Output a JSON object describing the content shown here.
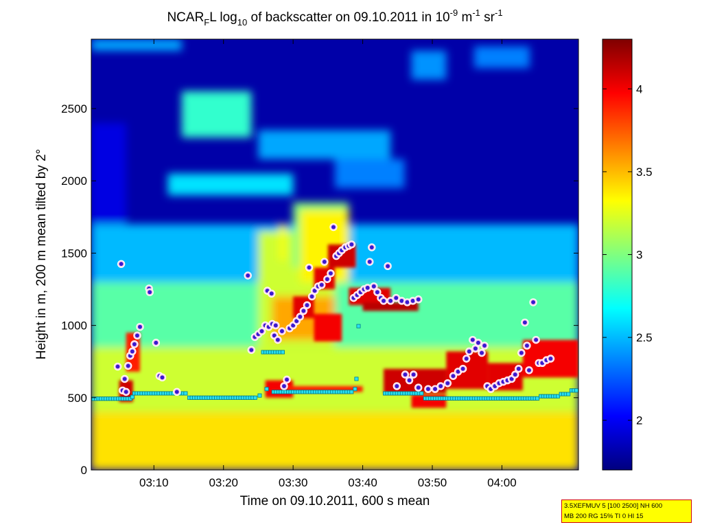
{
  "chart_data": {
    "type": "heatmap",
    "title": {
      "p1": "NCAR",
      "p1_sub": "F",
      "p2": "L log",
      "p2_sub": "10",
      "p3": " of backscatter on 09.10.2011 in 10",
      "p3_sup": "-9",
      "p4": " m",
      "p4_sup": "-1",
      "p5": " sr",
      "p5_sup": "-1"
    },
    "xlabel": "Time on 09.10.2011, 600 s mean",
    "ylabel": "Height in m, 200 m mean tilted by 2°",
    "x_unit": "minutes after 03:00",
    "xlim": [
      1,
      71
    ],
    "ylim": [
      0,
      2980
    ],
    "x_ticks": [
      {
        "v": 10,
        "label": "03:10"
      },
      {
        "v": 20,
        "label": "03:20"
      },
      {
        "v": 30,
        "label": "03:30"
      },
      {
        "v": 40,
        "label": "03:40"
      },
      {
        "v": 50,
        "label": "03:50"
      },
      {
        "v": 60,
        "label": "04:00"
      }
    ],
    "y_ticks": [
      {
        "v": 0,
        "label": "0"
      },
      {
        "v": 500,
        "label": "500"
      },
      {
        "v": 1000,
        "label": "1000"
      },
      {
        "v": 1500,
        "label": "1500"
      },
      {
        "v": 2000,
        "label": "2000"
      },
      {
        "v": 2500,
        "label": "2500"
      }
    ],
    "colorbar": {
      "range": [
        1.7,
        4.3
      ],
      "ticks": [
        {
          "v": 2,
          "label": "2"
        },
        {
          "v": 2.5,
          "label": "2.5"
        },
        {
          "v": 3,
          "label": "3"
        },
        {
          "v": 3.5,
          "label": "3.5"
        },
        {
          "v": 4,
          "label": "4"
        }
      ]
    },
    "cloud_regions": [
      {
        "x": [
          1,
          71
        ],
        "y": [
          0,
          400
        ],
        "value": 3.4
      },
      {
        "x": [
          1,
          71
        ],
        "y": [
          400,
          850
        ],
        "value": 3.2
      },
      {
        "x": [
          1,
          71
        ],
        "y": [
          850,
          1300
        ],
        "value": 2.9
      },
      {
        "x": [
          1,
          71
        ],
        "y": [
          1300,
          1700
        ],
        "value": 2.5
      },
      {
        "x": [
          1,
          6
        ],
        "y": [
          1700,
          2400
        ],
        "value": 1.95
      },
      {
        "x": [
          25,
          36
        ],
        "y": [
          850,
          1650
        ],
        "value": 3.2
      },
      {
        "x": [
          30,
          38
        ],
        "y": [
          1400,
          1850
        ],
        "value": 3.0
      },
      {
        "x": [
          14,
          24
        ],
        "y": [
          2400,
          2520
        ],
        "value": 3.2
      },
      {
        "x": [
          14,
          24
        ],
        "y": [
          2300,
          2620
        ],
        "value": 2.8
      },
      {
        "x": [
          12,
          30
        ],
        "y": [
          1900,
          2050
        ],
        "value": 2.6
      },
      {
        "x": [
          25,
          44
        ],
        "y": [
          2150,
          2350
        ],
        "value": 2.45
      },
      {
        "x": [
          36,
          46
        ],
        "y": [
          1950,
          2150
        ],
        "value": 2.35
      },
      {
        "x": [
          47,
          52
        ],
        "y": [
          2700,
          2900
        ],
        "value": 2.4
      },
      {
        "x": [
          56,
          64
        ],
        "y": [
          2780,
          2930
        ],
        "value": 2.35
      },
      {
        "x": [
          1,
          14
        ],
        "y": [
          2900,
          2980
        ],
        "value": 2.45
      },
      {
        "x": [
          27,
          36
        ],
        "y": [
          900,
          1200
        ],
        "value": 3.55
      },
      {
        "x": [
          28,
          29
        ],
        "y": [
          1450,
          1700
        ],
        "value": 3.3
      },
      {
        "x": [
          31,
          38
        ],
        "y": [
          1300,
          1800
        ],
        "value": 3.35
      }
    ],
    "layers": [
      {
        "x": [
          5,
          7
        ],
        "y": [
          470,
          620
        ],
        "value": 4.1
      },
      {
        "x": [
          6,
          8
        ],
        "y": [
          680,
          950
        ],
        "value": 3.9
      },
      {
        "x": [
          26,
          30
        ],
        "y": [
          500,
          620
        ],
        "value": 4.0
      },
      {
        "x": [
          29,
          40
        ],
        "y": [
          540,
          580
        ],
        "value": 3.9
      },
      {
        "x": [
          30,
          33
        ],
        "y": [
          1050,
          1200
        ],
        "value": 4.05
      },
      {
        "x": [
          33,
          36
        ],
        "y": [
          1250,
          1400
        ],
        "value": 4.05
      },
      {
        "x": [
          35,
          39
        ],
        "y": [
          1400,
          1560
        ],
        "value": 4.1
      },
      {
        "x": [
          38,
          44
        ],
        "y": [
          1140,
          1260
        ],
        "value": 4.05
      },
      {
        "x": [
          40,
          48
        ],
        "y": [
          1100,
          1160
        ],
        "value": 4.15
      },
      {
        "x": [
          33,
          36
        ],
        "y": [
          890,
          1080
        ],
        "value": 4.0
      },
      {
        "x": [
          36,
          37
        ],
        "y": [
          890,
          1080
        ],
        "value": 4.0
      },
      {
        "x": [
          43,
          52
        ],
        "y": [
          530,
          700
        ],
        "value": 4.1
      },
      {
        "x": [
          47,
          52
        ],
        "y": [
          430,
          520
        ],
        "value": 4.0
      },
      {
        "x": [
          52,
          58
        ],
        "y": [
          560,
          820
        ],
        "value": 4.05
      },
      {
        "x": [
          58,
          63
        ],
        "y": [
          550,
          740
        ],
        "value": 4.05
      },
      {
        "x": [
          63,
          71
        ],
        "y": [
          640,
          900
        ],
        "value": 4.0
      }
    ],
    "series": [
      {
        "marker": "circle",
        "points": [
          {
            "x": 4.8,
            "y": 715
          },
          {
            "x": 5.3,
            "y": 1425
          },
          {
            "x": 5.5,
            "y": 550
          },
          {
            "x": 5.8,
            "y": 630
          },
          {
            "x": 6.0,
            "y": 540
          },
          {
            "x": 6.3,
            "y": 720
          },
          {
            "x": 6.6,
            "y": 790
          },
          {
            "x": 6.9,
            "y": 820
          },
          {
            "x": 7.2,
            "y": 870
          },
          {
            "x": 7.6,
            "y": 930
          },
          {
            "x": 8.0,
            "y": 990
          },
          {
            "x": 9.3,
            "y": 1255
          },
          {
            "x": 9.4,
            "y": 1230
          },
          {
            "x": 10.3,
            "y": 880
          },
          {
            "x": 10.8,
            "y": 650
          },
          {
            "x": 11.2,
            "y": 640
          },
          {
            "x": 13.3,
            "y": 540
          },
          {
            "x": 23.5,
            "y": 1345
          },
          {
            "x": 24.0,
            "y": 830
          },
          {
            "x": 24.5,
            "y": 920
          },
          {
            "x": 25.0,
            "y": 940
          },
          {
            "x": 25.5,
            "y": 960
          },
          {
            "x": 26.0,
            "y": 1000
          },
          {
            "x": 26.5,
            "y": 990
          },
          {
            "x": 27.0,
            "y": 1010
          },
          {
            "x": 27.5,
            "y": 1000
          },
          {
            "x": 26.3,
            "y": 1240
          },
          {
            "x": 26.9,
            "y": 1220
          },
          {
            "x": 27.3,
            "y": 930
          },
          {
            "x": 27.8,
            "y": 900
          },
          {
            "x": 28.4,
            "y": 960
          },
          {
            "x": 28.7,
            "y": 580
          },
          {
            "x": 29.1,
            "y": 625
          },
          {
            "x": 29.5,
            "y": 980
          },
          {
            "x": 30.0,
            "y": 1000
          },
          {
            "x": 30.5,
            "y": 1030
          },
          {
            "x": 31.0,
            "y": 1060
          },
          {
            "x": 31.5,
            "y": 1100
          },
          {
            "x": 32.0,
            "y": 1140
          },
          {
            "x": 32.3,
            "y": 1400
          },
          {
            "x": 32.7,
            "y": 1200
          },
          {
            "x": 33.1,
            "y": 1240
          },
          {
            "x": 33.6,
            "y": 1270
          },
          {
            "x": 34.1,
            "y": 1280
          },
          {
            "x": 34.5,
            "y": 1440
          },
          {
            "x": 34.9,
            "y": 1320
          },
          {
            "x": 35.4,
            "y": 1360
          },
          {
            "x": 35.8,
            "y": 1680
          },
          {
            "x": 36.2,
            "y": 1480
          },
          {
            "x": 36.6,
            "y": 1500
          },
          {
            "x": 37.0,
            "y": 1520
          },
          {
            "x": 37.5,
            "y": 1540
          },
          {
            "x": 38.0,
            "y": 1550
          },
          {
            "x": 38.4,
            "y": 1560
          },
          {
            "x": 38.7,
            "y": 1190
          },
          {
            "x": 39.2,
            "y": 1210
          },
          {
            "x": 39.7,
            "y": 1230
          },
          {
            "x": 40.2,
            "y": 1250
          },
          {
            "x": 40.7,
            "y": 1260
          },
          {
            "x": 41.0,
            "y": 1440
          },
          {
            "x": 41.3,
            "y": 1540
          },
          {
            "x": 41.6,
            "y": 1270
          },
          {
            "x": 42.1,
            "y": 1230
          },
          {
            "x": 42.6,
            "y": 1190
          },
          {
            "x": 43.0,
            "y": 1170
          },
          {
            "x": 43.6,
            "y": 1410
          },
          {
            "x": 44.0,
            "y": 1170
          },
          {
            "x": 44.8,
            "y": 1190
          },
          {
            "x": 45.6,
            "y": 1170
          },
          {
            "x": 46.4,
            "y": 1160
          },
          {
            "x": 47.2,
            "y": 1170
          },
          {
            "x": 48.0,
            "y": 1180
          },
          {
            "x": 44.9,
            "y": 580
          },
          {
            "x": 46.1,
            "y": 660
          },
          {
            "x": 46.7,
            "y": 620
          },
          {
            "x": 47.3,
            "y": 660
          },
          {
            "x": 48.0,
            "y": 570
          },
          {
            "x": 49.4,
            "y": 560
          },
          {
            "x": 50.4,
            "y": 560
          },
          {
            "x": 51.2,
            "y": 580
          },
          {
            "x": 52.2,
            "y": 600
          },
          {
            "x": 53.0,
            "y": 650
          },
          {
            "x": 53.7,
            "y": 680
          },
          {
            "x": 54.4,
            "y": 700
          },
          {
            "x": 54.9,
            "y": 770
          },
          {
            "x": 55.3,
            "y": 820
          },
          {
            "x": 55.8,
            "y": 900
          },
          {
            "x": 56.2,
            "y": 840
          },
          {
            "x": 56.6,
            "y": 880
          },
          {
            "x": 57.1,
            "y": 810
          },
          {
            "x": 57.5,
            "y": 860
          },
          {
            "x": 57.9,
            "y": 580
          },
          {
            "x": 58.4,
            "y": 560
          },
          {
            "x": 59.0,
            "y": 580
          },
          {
            "x": 59.6,
            "y": 600
          },
          {
            "x": 60.2,
            "y": 610
          },
          {
            "x": 60.8,
            "y": 620
          },
          {
            "x": 61.4,
            "y": 630
          },
          {
            "x": 61.9,
            "y": 660
          },
          {
            "x": 62.4,
            "y": 700
          },
          {
            "x": 62.8,
            "y": 810
          },
          {
            "x": 63.3,
            "y": 1020
          },
          {
            "x": 63.6,
            "y": 860
          },
          {
            "x": 63.9,
            "y": 690
          },
          {
            "x": 64.5,
            "y": 1160
          },
          {
            "x": 64.9,
            "y": 900
          },
          {
            "x": 65.3,
            "y": 740
          },
          {
            "x": 65.8,
            "y": 740
          },
          {
            "x": 66.4,
            "y": 760
          },
          {
            "x": 67.0,
            "y": 770
          }
        ]
      },
      {
        "marker": "square",
        "segments": [
          {
            "x": [
              1,
              6.6
            ],
            "y": 493
          },
          {
            "x": 6.9,
            "y": 505
          },
          {
            "x": [
              7.2,
              14.8
            ],
            "y": 530
          },
          {
            "x": [
              15.1,
              24.8
            ],
            "y": 500
          },
          {
            "x": 25.2,
            "y": 515
          },
          {
            "x": [
              25.7,
              28.6
            ],
            "y": 815
          },
          {
            "x": 26.2,
            "y": 560
          },
          {
            "x": [
              27.2,
              38.6
            ],
            "y": 540
          },
          {
            "x": 38.9,
            "y": 560
          },
          {
            "x": 39.1,
            "y": 630
          },
          {
            "x": 39.4,
            "y": 995
          },
          {
            "x": [
              43.2,
              48.6
            ],
            "y": 530
          },
          {
            "x": [
              49.0,
              65.2
            ],
            "y": 495
          },
          {
            "x": [
              65.6,
              68.2
            ],
            "y": 510
          },
          {
            "x": [
              68.5,
              69.8
            ],
            "y": 525
          },
          {
            "x": [
              70.0,
              70.8
            ],
            "y": 550
          }
        ]
      }
    ]
  },
  "info_box": {
    "line1": "3.5XEFMUV 5 [100 2500] NH 600",
    "line2": "MB 200 RG 15% TI 0 HI 15"
  }
}
